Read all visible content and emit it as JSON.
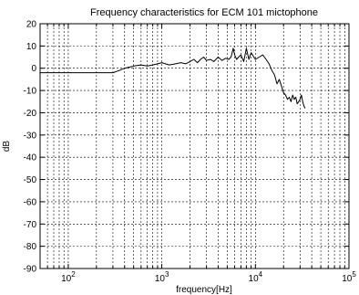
{
  "chart_data": {
    "type": "line",
    "title": "Frequency characteristics for ECM 101 mictophone",
    "xlabel": "frequency[Hz]",
    "ylabel": "dB",
    "xscale": "log",
    "xlim": [
      50,
      100000
    ],
    "ylim": [
      -90,
      20
    ],
    "grid": true,
    "x_ticks": [
      {
        "value": 100,
        "base": "10",
        "exp": "2"
      },
      {
        "value": 1000,
        "base": "10",
        "exp": "3"
      },
      {
        "value": 10000,
        "base": "10",
        "exp": "4"
      },
      {
        "value": 100000,
        "base": "10",
        "exp": "5"
      }
    ],
    "y_ticks": [
      20,
      10,
      0,
      -10,
      -20,
      -30,
      -40,
      -50,
      -60,
      -70,
      -80,
      -90
    ],
    "series": [
      {
        "color": "#000000",
        "x": [
          50,
          100,
          200,
          300,
          350,
          400,
          450,
          500,
          600,
          700,
          800,
          900,
          1000,
          1200,
          1400,
          1600,
          1800,
          2000,
          2200,
          2400,
          2600,
          2800,
          3000,
          3300,
          3600,
          4000,
          4400,
          4800,
          5200,
          5500,
          5800,
          6000,
          6300,
          6600,
          7000,
          7500,
          8000,
          8500,
          9000,
          10000,
          11000,
          12000,
          13000,
          14000,
          15000,
          16000,
          17000,
          18000,
          19000,
          20000,
          21000,
          22000,
          23000,
          24000,
          25000,
          26000,
          27000,
          28000,
          29000,
          30000,
          31000,
          32000,
          33000,
          34000
        ],
        "y": [
          -2,
          -2,
          -2,
          -2,
          -1,
          0,
          0.5,
          1,
          1.5,
          1,
          1.5,
          2,
          2.5,
          1.5,
          2,
          2.5,
          2,
          3,
          4,
          2.5,
          4,
          5,
          3.5,
          4,
          3,
          5,
          3.5,
          4.5,
          4,
          5,
          9,
          6,
          4,
          5,
          6,
          3,
          9,
          4,
          7,
          4,
          5,
          6,
          4,
          2,
          -1,
          -3,
          -7,
          -5,
          -8,
          -11,
          -12,
          -14,
          -13,
          -15,
          -12,
          -14,
          -13,
          -16,
          -15,
          -14,
          -12,
          -15,
          -17,
          -18
        ]
      }
    ]
  }
}
